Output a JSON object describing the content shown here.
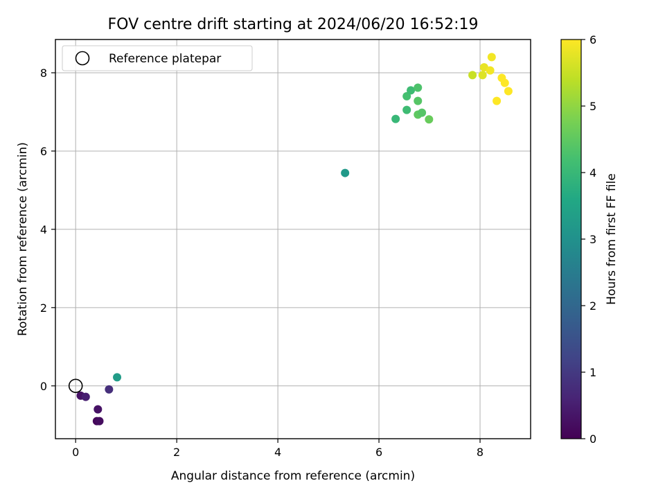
{
  "chart_data": {
    "type": "scatter",
    "title": "FOV centre drift starting at 2024/06/20 16:52:19",
    "xlabel": "Angular distance from reference (arcmin)",
    "ylabel": "Rotation from reference (arcmin)",
    "xlim": [
      -0.4,
      9.0
    ],
    "ylim": [
      -1.35,
      8.85
    ],
    "xticks": [
      0,
      2,
      4,
      6,
      8
    ],
    "yticks": [
      0,
      2,
      4,
      6,
      8
    ],
    "grid": true,
    "legend": {
      "position": "top-left",
      "entries": [
        "Reference platepar"
      ]
    },
    "reference": {
      "x": 0,
      "y": 0
    },
    "colorbar": {
      "label": "Hours from first FF file",
      "range": [
        0,
        6
      ],
      "ticks": [
        0,
        1,
        2,
        3,
        4,
        5,
        6
      ],
      "colormap": "viridis"
    },
    "points": [
      {
        "x": 0.1,
        "y": -0.25,
        "c": 0.3
      },
      {
        "x": 0.2,
        "y": -0.28,
        "c": 0.5
      },
      {
        "x": 0.42,
        "y": -0.9,
        "c": 0.1
      },
      {
        "x": 0.47,
        "y": -0.9,
        "c": 0.2
      },
      {
        "x": 0.44,
        "y": -0.6,
        "c": 0.3
      },
      {
        "x": 0.66,
        "y": -0.09,
        "c": 0.8
      },
      {
        "x": 0.82,
        "y": 0.22,
        "c": 3.3
      },
      {
        "x": 5.33,
        "y": 5.44,
        "c": 3.2
      },
      {
        "x": 6.33,
        "y": 6.82,
        "c": 4.0
      },
      {
        "x": 6.55,
        "y": 7.05,
        "c": 4.1
      },
      {
        "x": 6.55,
        "y": 7.4,
        "c": 4.2
      },
      {
        "x": 6.63,
        "y": 7.55,
        "c": 4.1
      },
      {
        "x": 6.77,
        "y": 7.62,
        "c": 4.3
      },
      {
        "x": 6.77,
        "y": 7.28,
        "c": 4.4
      },
      {
        "x": 6.77,
        "y": 6.93,
        "c": 4.5
      },
      {
        "x": 6.85,
        "y": 6.98,
        "c": 4.4
      },
      {
        "x": 6.99,
        "y": 6.81,
        "c": 4.6
      },
      {
        "x": 7.85,
        "y": 7.94,
        "c": 5.5
      },
      {
        "x": 8.05,
        "y": 7.94,
        "c": 5.7
      },
      {
        "x": 8.08,
        "y": 8.14,
        "c": 5.8
      },
      {
        "x": 8.2,
        "y": 8.06,
        "c": 5.9
      },
      {
        "x": 8.23,
        "y": 8.4,
        "c": 5.9
      },
      {
        "x": 8.33,
        "y": 7.28,
        "c": 6.0
      },
      {
        "x": 8.43,
        "y": 7.87,
        "c": 6.0
      },
      {
        "x": 8.49,
        "y": 7.74,
        "c": 6.0
      },
      {
        "x": 8.56,
        "y": 7.53,
        "c": 6.0
      }
    ]
  }
}
